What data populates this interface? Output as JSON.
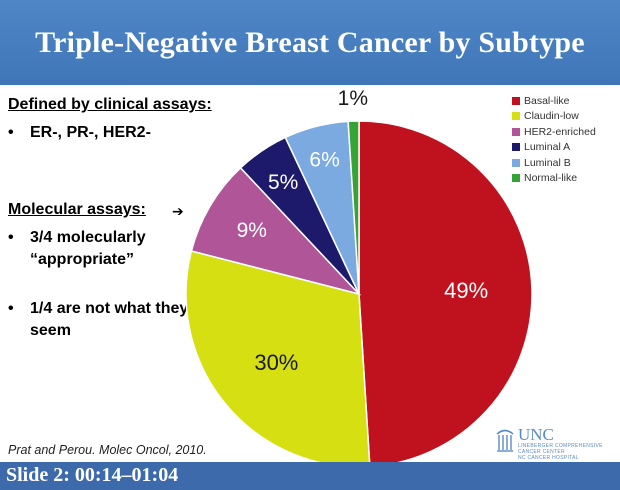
{
  "slide": {
    "title": "Triple-Negative Breast Cancer by Subtype",
    "footer": "Slide 2: 00:14–01:04",
    "citation": "Prat and Perou. Molec Oncol, 2010."
  },
  "left_panel": {
    "clinical_heading": "Defined by clinical assays:",
    "clinical_bullet": "ER-, PR-, HER2-",
    "molecular_heading": "Molecular assays:",
    "arrow": "➔",
    "bullet_glyph": "•",
    "molecular_bullets": [
      "3/4 molecularly “appropriate”",
      "1/4 are not what they seem"
    ]
  },
  "logo": {
    "name": "UNC",
    "line1": "LINEBERGER COMPREHENSIVE",
    "line2": "CANCER CENTER",
    "line3": "NC CANCER HOSPITAL"
  },
  "chart_data": {
    "type": "pie",
    "title": "",
    "start_angle_deg": 0,
    "direction": "clockwise",
    "legend_position": "top-right",
    "slices": [
      {
        "name": "Basal-like",
        "value": 49,
        "label": "49%",
        "color": "#c0121e",
        "label_color": "#ffffff"
      },
      {
        "name": "Claudin-low",
        "value": 30,
        "label": "30%",
        "color": "#d5df12",
        "label_color": "#1a1a1a"
      },
      {
        "name": "HER2-enriched",
        "value": 9,
        "label": "9%",
        "color": "#b05598",
        "label_color": "#ffffff"
      },
      {
        "name": "Luminal A",
        "value": 5,
        "label": "5%",
        "color": "#1e1a6b",
        "label_color": "#ffffff"
      },
      {
        "name": "Luminal B",
        "value": 6,
        "label": "6%",
        "color": "#7aaae0",
        "label_color": "#ffffff"
      },
      {
        "name": "Normal-like",
        "value": 1,
        "label": "1%",
        "color": "#36a336",
        "label_color": "#1a1a1a"
      }
    ]
  }
}
